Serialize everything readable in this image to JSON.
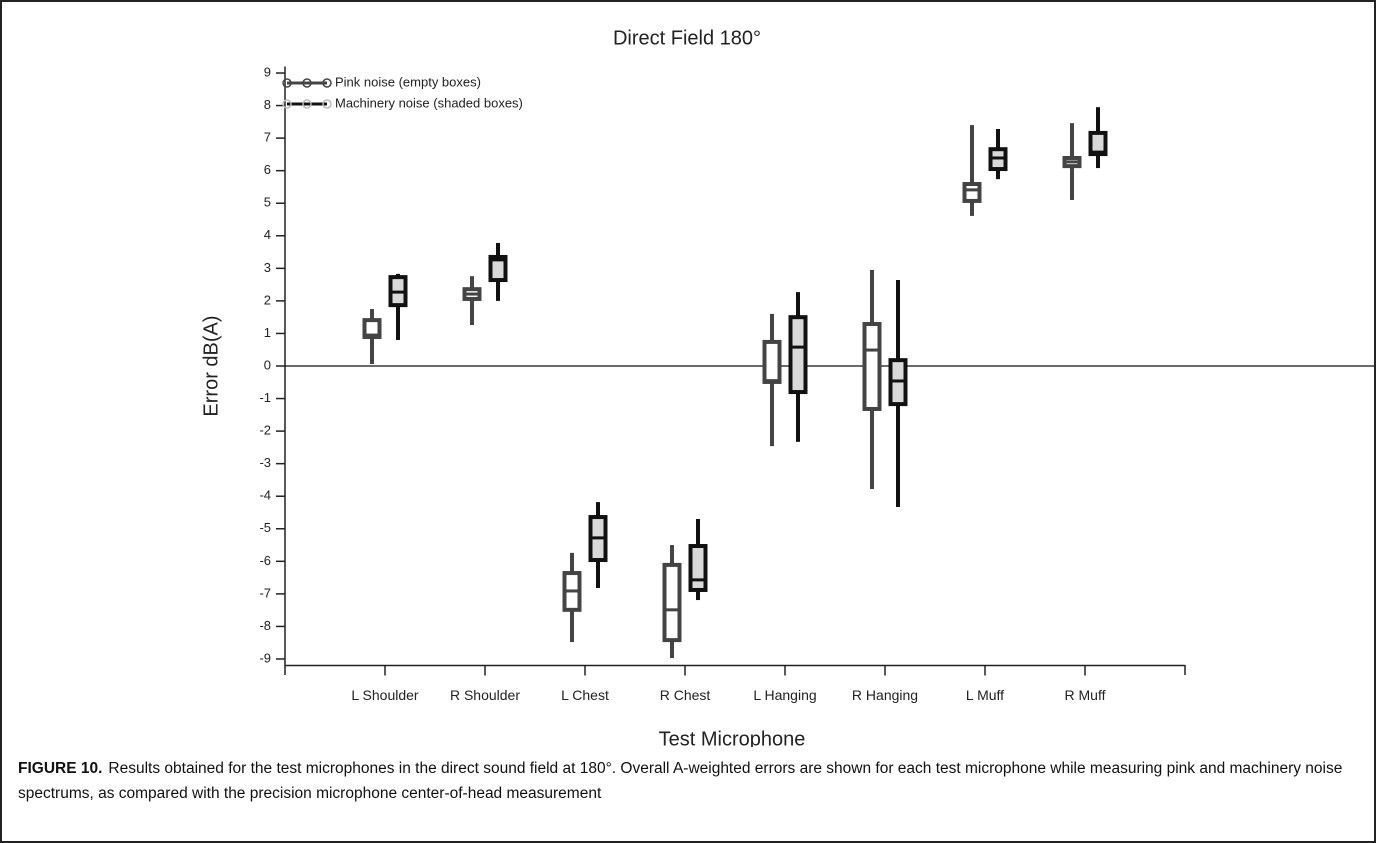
{
  "chart_data": {
    "type": "boxplot",
    "title": "Direct Field 180°",
    "x_label": "Test Microphone",
    "y_label": "Error dB(A)",
    "categories": [
      "L Shoulder",
      "R Shoulder",
      "L Chest",
      "R Chest",
      "L Hanging",
      "R Hanging",
      "L Muff",
      "R Muff"
    ],
    "series": [
      {
        "name": "Pink noise (empty boxes)",
        "color": "#444444",
        "fill": "#ffffff",
        "min": [
          0.06,
          1.26,
          -8.48,
          -8.97,
          -2.46,
          -3.78,
          4.61,
          5.1
        ],
        "q1": [
          0.89,
          2.06,
          -7.49,
          -8.42,
          -0.49,
          -1.32,
          5.07,
          6.14
        ],
        "median": [
          0.95,
          2.21,
          -6.91,
          -7.49,
          -0.45,
          0.49,
          5.41,
          6.27
        ],
        "q3": [
          1.41,
          2.36,
          -6.36,
          -6.11,
          0.74,
          1.29,
          5.59,
          6.39
        ],
        "max": [
          1.75,
          2.76,
          -5.74,
          -5.5,
          1.6,
          2.95,
          7.4,
          7.46
        ]
      },
      {
        "name": "Machinery noise (shaded boxes)",
        "color": "#111111",
        "fill": "#d9d9d9",
        "min": [
          0.8,
          2.0,
          -6.82,
          -7.19,
          -2.33,
          -4.33,
          5.74,
          6.08
        ],
        "q1": [
          1.87,
          2.64,
          -5.96,
          -6.88,
          -0.8,
          -1.17,
          6.05,
          6.51
        ],
        "median": [
          2.27,
          3.26,
          -5.28,
          -6.57,
          0.58,
          -0.46,
          6.39,
          6.57
        ],
        "q3": [
          2.73,
          3.35,
          -4.64,
          -5.53,
          1.5,
          0.18,
          6.66,
          7.16
        ],
        "max": [
          2.83,
          3.78,
          -4.18,
          -4.7,
          2.27,
          2.64,
          7.28,
          7.95
        ]
      }
    ],
    "reference_line": 0,
    "ylim": [
      -9.2,
      9.2
    ],
    "yticks": [
      -9,
      -8,
      -7,
      -6,
      -5,
      -4,
      -3,
      -2,
      -1,
      0,
      1,
      2,
      3,
      4,
      5,
      6,
      7,
      8,
      9
    ],
    "legend": "upper left"
  },
  "caption": {
    "label": "FIGURE 10.",
    "text": "Results obtained for the test microphones in the direct sound field at 180°. Overall A-weighted errors are shown for each test microphone while measuring pink and machinery noise spectrums, as compared with the precision microphone center-of-head measurement"
  }
}
